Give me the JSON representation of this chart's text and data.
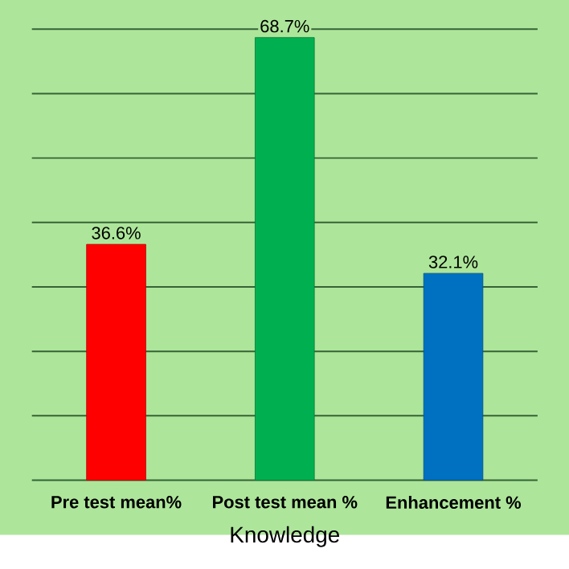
{
  "chart_data": {
    "type": "bar",
    "xlabel": "Knowledge",
    "categories": [
      "Pre test mean%",
      "Post test mean %",
      "Enhancement %"
    ],
    "values": [
      36.6,
      68.7,
      32.1
    ],
    "colors": [
      "#ff0000",
      "#00b050",
      "#0070c0"
    ],
    "value_labels": [
      "36.6%",
      "68.7%",
      "32.1%"
    ],
    "ylim": [
      0,
      70
    ],
    "yticks": [
      {
        "value": 0,
        "label": null
      },
      {
        "value": 10,
        "label": null
      },
      {
        "value": 20,
        "label": null
      },
      {
        "value": 30,
        "label": null
      },
      {
        "value": 40,
        "label": null
      },
      {
        "value": 50,
        "label": null
      },
      {
        "value": 60,
        "label": null
      },
      {
        "value": 70,
        "label": null
      }
    ],
    "grid": "y"
  }
}
